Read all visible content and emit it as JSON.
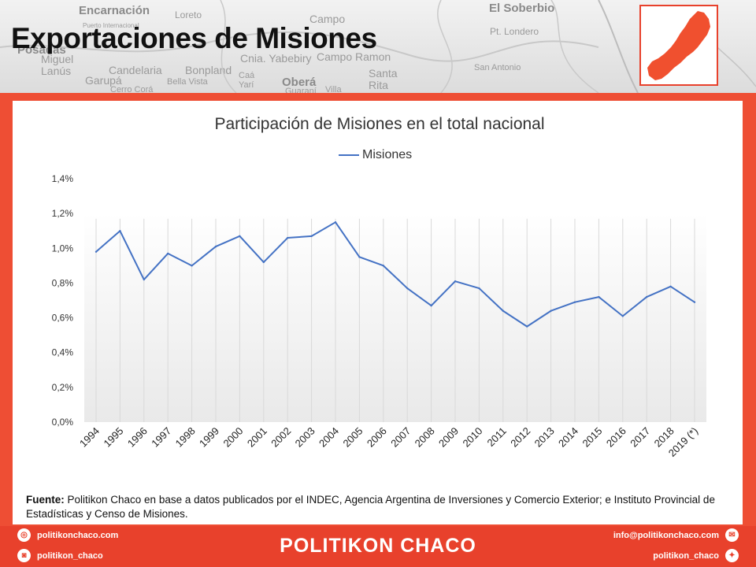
{
  "header": {
    "title": "Exportaciones de Misiones",
    "map_places": [
      "Encarnación",
      "Loreto",
      "Posadas",
      "Campo",
      "El Soberbio",
      "Pt. Londero",
      "Miguel Lanús",
      "Candelaria",
      "Garupá",
      "Bella Vista",
      "Bonpland",
      "Cnia. Yabebiry",
      "Campo Ramon",
      "Oberá",
      "Santa Rita",
      "San Antonio",
      "Caá Yarí",
      "Guaraní",
      "Villa",
      "Cerro Corá",
      "Puerto Internacional"
    ]
  },
  "chart_data": {
    "type": "line",
    "title": "Participación de Misiones en el total nacional",
    "xlabel": "",
    "ylabel": "",
    "categories": [
      "1994",
      "1995",
      "1996",
      "1997",
      "1998",
      "1999",
      "2000",
      "2001",
      "2002",
      "2003",
      "2004",
      "2005",
      "2006",
      "2007",
      "2008",
      "2009",
      "2010",
      "2011",
      "2012",
      "2013",
      "2014",
      "2015",
      "2016",
      "2017",
      "2018",
      "2019 (*)"
    ],
    "series": [
      {
        "name": "Misiones",
        "color": "#4472c4",
        "values": [
          0.98,
          1.1,
          0.82,
          0.97,
          0.9,
          1.01,
          1.07,
          0.92,
          1.06,
          1.07,
          1.15,
          0.95,
          0.9,
          0.77,
          0.67,
          0.81,
          0.77,
          0.64,
          0.55,
          0.64,
          0.69,
          0.72,
          0.61,
          0.72,
          0.78,
          0.69
        ]
      }
    ],
    "ylim": [
      0,
      1.4
    ],
    "yticks": [
      "0,0%",
      "0,2%",
      "0,4%",
      "0,6%",
      "0,8%",
      "1,0%",
      "1,2%",
      "1,4%"
    ],
    "legend": "top-center",
    "grid": "vertical"
  },
  "source": {
    "label": "Fuente:",
    "text": " Politikon Chaco en base a datos publicados por el INDEC, Agencia Argentina de Inversiones y Comercio Exterior; e Instituto Provincial de Estadísticas y Censo de Misiones."
  },
  "footer": {
    "brand": "POLITIKON CHACO",
    "website": "politikonchaco.com",
    "instagram": "politikon_chaco",
    "email": "info@politikonchaco.com",
    "twitter": "politikon_chaco"
  },
  "colors": {
    "accent": "#e8412c",
    "line": "#4472c4"
  }
}
